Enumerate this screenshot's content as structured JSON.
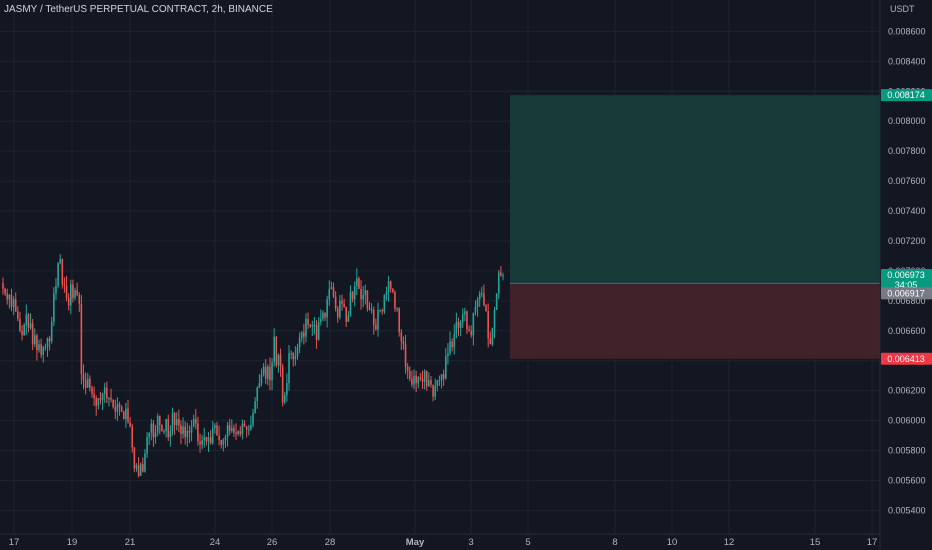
{
  "header": {
    "title": "JASMY / TetherUS PERPETUAL CONTRACT, 2h, BINANCE"
  },
  "price_scale": {
    "currency": "USDT"
  },
  "colors": {
    "background": "#131722",
    "grid": "#1f2330",
    "up": "#26a69a",
    "down": "#ef5350",
    "profit_zone": "#173b38",
    "loss_zone": "#41212a",
    "target_label": "#089981",
    "stop_label": "#f23645",
    "last_price_label": "#089981",
    "entry_label": "#787b86"
  },
  "chart_data": {
    "type": "candlestick",
    "symbol": "JASMY / TetherUS PERPETUAL CONTRACT",
    "interval": "2h",
    "exchange": "BINANCE",
    "y_ticks": [
      "0.008600",
      "0.008400",
      "0.008200",
      "0.008000",
      "0.007800",
      "0.007600",
      "0.007400",
      "0.007200",
      "0.007000",
      "0.006800",
      "0.006600",
      "0.006400",
      "0.006200",
      "0.006000",
      "0.005800",
      "0.005600",
      "0.005400"
    ],
    "y_range": [
      0.00538,
      0.00876
    ],
    "x_ticks": [
      {
        "label": "17",
        "bold": false
      },
      {
        "label": "19",
        "bold": false
      },
      {
        "label": "21",
        "bold": false
      },
      {
        "label": "24",
        "bold": false
      },
      {
        "label": "26",
        "bold": false
      },
      {
        "label": "28",
        "bold": false
      },
      {
        "label": "May",
        "bold": true
      },
      {
        "label": "3",
        "bold": false
      },
      {
        "label": "5",
        "bold": false
      },
      {
        "label": "8",
        "bold": false
      },
      {
        "label": "10",
        "bold": false
      },
      {
        "label": "12",
        "bold": false
      },
      {
        "label": "15",
        "bold": false
      },
      {
        "label": "17",
        "bold": false
      }
    ],
    "long_position": {
      "target": 0.008174,
      "entry": 0.006917,
      "stop": 0.006413,
      "target_label": "0.008174",
      "entry_label": "0.006917",
      "stop_label": "0.006413"
    },
    "last_price": {
      "value": 0.006973,
      "label": "0.006973",
      "countdown": "34:05"
    },
    "closes": [
      0.00688,
      0.00685,
      0.00681,
      0.00684,
      0.00676,
      0.00681,
      0.00673,
      0.00668,
      0.0066,
      0.00657,
      0.00664,
      0.00671,
      0.00662,
      0.00665,
      0.00651,
      0.00657,
      0.00647,
      0.00651,
      0.00644,
      0.00649,
      0.00649,
      0.00655,
      0.00653,
      0.00666,
      0.00685,
      0.0069,
      0.00705,
      0.00708,
      0.00691,
      0.0069,
      0.00682,
      0.00677,
      0.00691,
      0.00682,
      0.00687,
      0.00684,
      0.00678,
      0.00631,
      0.00627,
      0.00622,
      0.00628,
      0.00622,
      0.00618,
      0.00615,
      0.0061,
      0.00615,
      0.00614,
      0.00618,
      0.00622,
      0.00615,
      0.00615,
      0.00614,
      0.00609,
      0.00606,
      0.00611,
      0.00609,
      0.00606,
      0.00601,
      0.00608,
      0.00599,
      0.00596,
      0.00582,
      0.00568,
      0.0057,
      0.00563,
      0.00571,
      0.00566,
      0.00578,
      0.00589,
      0.00592,
      0.00598,
      0.00589,
      0.00592,
      0.00603,
      0.00597,
      0.00593,
      0.00593,
      0.00601,
      0.00589,
      0.00593,
      0.00605,
      0.00597,
      0.00601,
      0.00597,
      0.00591,
      0.00596,
      0.00589,
      0.00593,
      0.00592,
      0.00596,
      0.00601,
      0.00598,
      0.00586,
      0.00584,
      0.00587,
      0.00589,
      0.00586,
      0.00589,
      0.00585,
      0.00595,
      0.00597,
      0.0059,
      0.00587,
      0.00584,
      0.00587,
      0.00589,
      0.00597,
      0.00593,
      0.00595,
      0.00592,
      0.00591,
      0.00593,
      0.00591,
      0.00598,
      0.00596,
      0.00594,
      0.00594,
      0.00597,
      0.00605,
      0.00613,
      0.00622,
      0.00625,
      0.00631,
      0.00636,
      0.00628,
      0.00636,
      0.00627,
      0.00639,
      0.00656,
      0.00637,
      0.00644,
      0.00636,
      0.00612,
      0.00617,
      0.00625,
      0.00645,
      0.00645,
      0.00641,
      0.00643,
      0.00649,
      0.00655,
      0.00659,
      0.00656,
      0.00668,
      0.00664,
      0.00663,
      0.00664,
      0.00664,
      0.00654,
      0.00666,
      0.00668,
      0.00672,
      0.00669,
      0.00681,
      0.00688,
      0.00689,
      0.00683,
      0.00675,
      0.00669,
      0.0068,
      0.00678,
      0.00676,
      0.00666,
      0.0067,
      0.00686,
      0.00681,
      0.0069,
      0.00695,
      0.00688,
      0.00681,
      0.00684,
      0.00687,
      0.00675,
      0.00674,
      0.00674,
      0.00664,
      0.00661,
      0.00674,
      0.00674,
      0.00673,
      0.00684,
      0.00686,
      0.00693,
      0.00688,
      0.00686,
      0.00675,
      0.00675,
      0.00659,
      0.00653,
      0.00651,
      0.00636,
      0.00633,
      0.00628,
      0.00624,
      0.0063,
      0.00625,
      0.00629,
      0.00628,
      0.00626,
      0.00633,
      0.00623,
      0.00627,
      0.00624,
      0.00616,
      0.00623,
      0.00627,
      0.00627,
      0.00631,
      0.00628,
      0.00643,
      0.00645,
      0.00653,
      0.00649,
      0.00658,
      0.00666,
      0.00662,
      0.00666,
      0.00671,
      0.00673,
      0.00661,
      0.0066,
      0.00657,
      0.00672,
      0.00676,
      0.00681,
      0.00685,
      0.00685,
      0.00677,
      0.00673,
      0.00655,
      0.00651,
      0.00662,
      0.00674,
      0.00685,
      0.00699,
      0.00697,
      0.00697
    ]
  }
}
